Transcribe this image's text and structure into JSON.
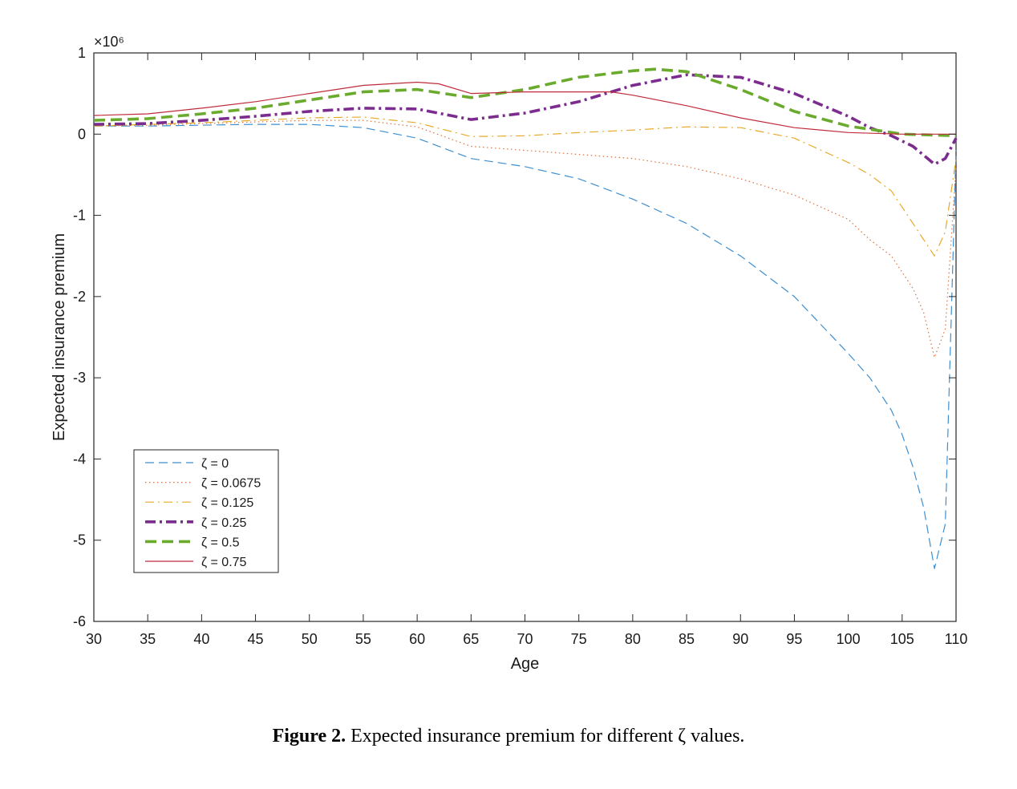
{
  "chart_data": {
    "type": "line",
    "title": "",
    "xlabel": "Age",
    "ylabel": "Expected insurance premium",
    "exponent_label": "×10⁶",
    "xlim": [
      30,
      110
    ],
    "ylim": [
      -6,
      1
    ],
    "xticks": [
      30,
      35,
      40,
      45,
      50,
      55,
      60,
      65,
      70,
      75,
      80,
      85,
      90,
      95,
      100,
      105,
      110
    ],
    "yticks": [
      1,
      0,
      -1,
      -2,
      -3,
      -4,
      -5,
      -6
    ],
    "xtick_labels": [
      "30",
      "35",
      "40",
      "45",
      "50",
      "55",
      "60",
      "65",
      "70",
      "75",
      "80",
      "85",
      "90",
      "95",
      "100",
      "105",
      "110"
    ],
    "ytick_labels": [
      "1",
      "0",
      "-1",
      "-2",
      "-3",
      "-4",
      "-5",
      "-6"
    ],
    "grid": false,
    "legend_position": "bottom-left",
    "series": [
      {
        "name": "ζ = 0",
        "color": "#3d8fd1",
        "dash": "dashed",
        "width": "thin",
        "x": [
          30,
          35,
          40,
          45,
          50,
          55,
          60,
          65,
          70,
          75,
          80,
          85,
          90,
          95,
          100,
          102,
          104,
          105,
          106,
          107,
          108,
          109,
          110
        ],
        "y": [
          0.1,
          0.1,
          0.11,
          0.12,
          0.12,
          0.08,
          -0.05,
          -0.3,
          -0.4,
          -0.55,
          -0.8,
          -1.1,
          -1.5,
          -2.0,
          -2.7,
          -3.0,
          -3.4,
          -3.7,
          -4.1,
          -4.6,
          -5.35,
          -4.8,
          -0.2
        ]
      },
      {
        "name": "ζ = 0.0675",
        "color": "#e0703a",
        "dash": "dotted",
        "width": "thin",
        "x": [
          30,
          35,
          40,
          45,
          50,
          55,
          60,
          65,
          70,
          75,
          80,
          85,
          90,
          95,
          100,
          102,
          104,
          105,
          106,
          107,
          108,
          109,
          110
        ],
        "y": [
          0.1,
          0.11,
          0.13,
          0.15,
          0.17,
          0.17,
          0.09,
          -0.15,
          -0.2,
          -0.25,
          -0.3,
          -0.4,
          -0.55,
          -0.75,
          -1.05,
          -1.3,
          -1.5,
          -1.7,
          -1.9,
          -2.2,
          -2.75,
          -2.4,
          -0.4
        ]
      },
      {
        "name": "ζ = 0.125",
        "color": "#e8a92a",
        "dash": "dashdot",
        "width": "thin",
        "x": [
          30,
          35,
          40,
          45,
          50,
          55,
          60,
          65,
          70,
          75,
          80,
          85,
          90,
          95,
          100,
          102,
          104,
          105,
          106,
          107,
          108,
          109,
          110
        ],
        "y": [
          0.1,
          0.12,
          0.14,
          0.17,
          0.2,
          0.21,
          0.14,
          -0.03,
          -0.02,
          0.02,
          0.05,
          0.09,
          0.08,
          -0.05,
          -0.35,
          -0.5,
          -0.7,
          -0.9,
          -1.1,
          -1.3,
          -1.5,
          -1.2,
          -0.3
        ]
      },
      {
        "name": "ζ = 0.25",
        "color": "#7b2c8e",
        "dash": "dashdot",
        "width": "thick",
        "x": [
          30,
          35,
          40,
          45,
          50,
          55,
          60,
          65,
          70,
          75,
          80,
          85,
          90,
          95,
          100,
          102,
          104,
          106,
          108,
          109,
          110
        ],
        "y": [
          0.12,
          0.13,
          0.17,
          0.22,
          0.28,
          0.32,
          0.31,
          0.18,
          0.26,
          0.4,
          0.6,
          0.73,
          0.7,
          0.5,
          0.22,
          0.08,
          -0.02,
          -0.15,
          -0.37,
          -0.3,
          -0.05
        ]
      },
      {
        "name": "ζ = 0.5",
        "color": "#6aab2e",
        "dash": "dashed",
        "width": "thick",
        "x": [
          30,
          35,
          40,
          45,
          50,
          55,
          60,
          65,
          70,
          75,
          80,
          82,
          85,
          90,
          95,
          100,
          103,
          105,
          110
        ],
        "y": [
          0.17,
          0.19,
          0.25,
          0.32,
          0.42,
          0.52,
          0.55,
          0.45,
          0.55,
          0.7,
          0.78,
          0.8,
          0.77,
          0.55,
          0.28,
          0.1,
          0.04,
          0.0,
          -0.02
        ]
      },
      {
        "name": "ζ = 0.75",
        "color": "#c02b3c",
        "dash": "solid",
        "width": "thin",
        "x": [
          30,
          35,
          40,
          45,
          50,
          55,
          60,
          62,
          65,
          70,
          75,
          78,
          80,
          85,
          90,
          95,
          100,
          105,
          110
        ],
        "y": [
          0.23,
          0.25,
          0.32,
          0.4,
          0.5,
          0.6,
          0.64,
          0.62,
          0.5,
          0.52,
          0.52,
          0.52,
          0.48,
          0.35,
          0.2,
          0.08,
          0.02,
          0.0,
          0.0
        ]
      }
    ]
  },
  "caption": {
    "label": "Figure 2.",
    "text": "Expected insurance premium for different ζ values."
  }
}
